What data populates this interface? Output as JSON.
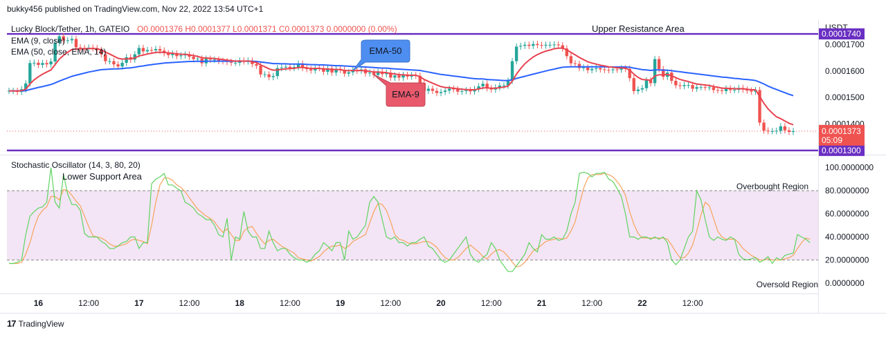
{
  "header": {
    "publisher_line": "bukky456 published on TradingView.com, Nov 22, 2022 13:54 UTC+1"
  },
  "footer": {
    "brand": "TradingView",
    "logo": "tradingview-logo-icon"
  },
  "colors": {
    "up": "#26a69a",
    "down": "#ef5350",
    "ema9": "#e8424f",
    "ema50": "#2962ff",
    "level": "#6a2fc2",
    "stoch_k": "#5fd35f",
    "stoch_d": "#f7a35c",
    "band": "#f3e5f5"
  },
  "chart_data": [
    {
      "type": "candlestick",
      "legend": {
        "symbol": "Lucky Block/Tether, 1h, GATEIO",
        "ohlc": "O0.0001376  H0.0001377  L0.0001371  C0.0001373  0.0000000 (0.00%)",
        "ema9": "EMA (9, close)",
        "ema50": "EMA (50, close, EMA, 14)"
      },
      "y_axis": {
        "unit": "USDT",
        "ticks": [
          "0.0001700",
          "0.0001600",
          "0.0001500",
          "0.0001400"
        ],
        "tick_values": [
          0.00017,
          0.00016,
          0.00015,
          0.00014
        ],
        "ylim": [
          0.0001284,
          0.0001795
        ]
      },
      "x_axis": {
        "labels": [
          "16",
          "12:00",
          "17",
          "12:00",
          "18",
          "12:00",
          "19",
          "12:00",
          "20",
          "12:00",
          "21",
          "12:00",
          "22",
          "12:00"
        ],
        "label_index": [
          7,
          19,
          31,
          43,
          55,
          67,
          79,
          91,
          103,
          115,
          127,
          139,
          151,
          163
        ]
      },
      "candles_close": [
        0.0001525,
        0.0001525,
        0.0001521,
        0.0001531,
        0.0001553,
        0.000163,
        0.0001631,
        0.0001623,
        0.000163,
        0.0001625,
        0.0001636,
        0.0001706,
        0.0001731,
        0.0001715,
        0.0001716,
        0.0001721,
        0.0001689,
        0.0001687,
        0.0001685,
        0.0001688,
        0.0001686,
        0.0001679,
        0.0001663,
        0.0001637,
        0.0001637,
        0.0001625,
        0.0001617,
        0.0001631,
        0.0001652,
        0.0001643,
        0.0001663,
        0.0001687,
        0.0001674,
        0.0001679,
        0.0001678,
        0.0001683,
        0.0001677,
        0.0001667,
        0.000166,
        0.0001666,
        0.0001656,
        0.0001659,
        0.0001662,
        0.0001654,
        0.0001645,
        0.0001647,
        0.0001629,
        0.0001646,
        0.0001643,
        0.0001643,
        0.0001638,
        0.0001637,
        0.0001634,
        0.0001631,
        0.0001631,
        0.0001639,
        0.0001636,
        0.0001639,
        0.0001626,
        0.000162,
        0.0001587,
        0.0001587,
        0.0001577,
        0.0001581,
        0.0001611,
        0.0001613,
        0.0001616,
        0.0001611,
        0.0001615,
        0.0001628,
        0.0001611,
        0.0001607,
        0.0001602,
        0.0001612,
        0.0001611,
        0.0001597,
        0.000161,
        0.0001594,
        0.0001608,
        0.0001604,
        0.000159,
        0.0001595,
        0.0001604,
        0.0001601,
        0.0001606,
        0.0001591,
        0.0001594,
        0.0001585,
        0.0001596,
        0.0001588,
        0.0001594,
        0.0001575,
        0.0001583,
        0.0001575,
        0.0001585,
        0.0001579,
        0.0001584,
        0.0001582,
        0.0001555,
        0.0001525,
        0.0001533,
        0.0001525,
        0.0001517,
        0.0001521,
        0.0001526,
        0.0001533,
        0.0001531,
        0.0001522,
        0.0001524,
        0.0001527,
        0.0001523,
        0.0001532,
        0.0001542,
        0.0001552,
        0.0001535,
        0.000153,
        0.0001538,
        0.0001545,
        0.0001545,
        0.0001563,
        0.0001637,
        0.0001692,
        0.0001695,
        0.0001699,
        0.0001695,
        0.0001702,
        0.0001698,
        0.0001696,
        0.0001699,
        0.0001699,
        0.00017,
        0.0001697,
        0.0001685,
        0.0001656,
        0.0001629,
        0.0001627,
        0.0001611,
        0.0001613,
        0.0001603,
        0.0001608,
        0.0001611,
        0.0001606,
        0.0001604,
        0.0001603,
        0.0001606,
        0.0001605,
        0.000161,
        0.0001608,
        0.0001573,
        0.0001524,
        0.000153,
        0.0001535,
        0.0001565,
        0.0001554,
        0.0001645,
        0.0001607,
        0.0001578,
        0.0001594,
        0.0001563,
        0.0001546,
        0.0001543,
        0.0001547,
        0.0001547,
        0.0001533,
        0.0001539,
        0.0001539,
        0.0001538,
        0.0001538,
        0.0001528,
        0.0001527,
        0.0001524,
        0.0001534,
        0.0001528,
        0.0001529,
        0.0001536,
        0.000153,
        0.0001526,
        0.0001522,
        0.0001528,
        0.0001405,
        0.0001375,
        0.0001373,
        0.0001373,
        0.0001374,
        0.0001391,
        0.0001376,
        0.000137,
        0.0001373
      ],
      "ema9": [
        0.0001525,
        0.0001525,
        0.0001524,
        0.0001526,
        0.0001531,
        0.0001551,
        0.0001567,
        0.0001578,
        0.0001588,
        0.0001596,
        0.0001604,
        0.0001624,
        0.0001645,
        0.0001659,
        0.0001671,
        0.0001681,
        0.0001683,
        0.0001684,
        0.0001684,
        0.0001685,
        0.0001685,
        0.0001684,
        0.000168,
        0.0001671,
        0.0001664,
        0.0001656,
        0.0001648,
        0.0001645,
        0.0001646,
        0.0001646,
        0.0001649,
        0.0001657,
        0.000166,
        0.0001664,
        0.0001667,
        0.000167,
        0.0001671,
        0.000167,
        0.0001668,
        0.0001667,
        0.0001665,
        0.0001663,
        0.0001663,
        0.0001661,
        0.0001658,
        0.0001655,
        0.000165,
        0.0001649,
        0.0001648,
        0.0001647,
        0.0001645,
        0.0001643,
        0.0001641,
        0.0001639,
        0.0001637,
        0.0001638,
        0.0001637,
        0.0001638,
        0.0001635,
        0.0001632,
        0.0001623,
        0.0001616,
        0.0001608,
        0.0001603,
        0.0001604,
        0.0001606,
        0.0001608,
        0.0001609,
        0.000161,
        0.0001613,
        0.0001613,
        0.0001612,
        0.0001609,
        0.000161,
        0.000161,
        0.0001607,
        0.0001608,
        0.0001605,
        0.0001606,
        0.0001605,
        0.0001602,
        0.0001601,
        0.0001602,
        0.0001601,
        0.0001602,
        0.00016,
        0.0001599,
        0.0001596,
        0.0001596,
        0.0001595,
        0.0001594,
        0.000159,
        0.0001589,
        0.0001586,
        0.0001586,
        0.0001584,
        0.0001584,
        0.0001584,
        0.0001578,
        0.0001568,
        0.0001561,
        0.0001554,
        0.0001547,
        0.0001541,
        0.0001538,
        0.0001537,
        0.0001535,
        0.0001533,
        0.0001531,
        0.000153,
        0.0001529,
        0.0001529,
        0.0001532,
        0.0001536,
        0.0001536,
        0.0001535,
        0.0001535,
        0.0001537,
        0.0001539,
        0.0001543,
        0.0001562,
        0.0001588,
        0.0001609,
        0.0001627,
        0.0001641,
        0.0001653,
        0.0001662,
        0.0001669,
        0.0001675,
        0.0001679,
        0.0001684,
        0.0001686,
        0.0001686,
        0.000168,
        0.000167,
        0.0001661,
        0.0001651,
        0.0001643,
        0.0001635,
        0.000163,
        0.0001626,
        0.0001622,
        0.0001619,
        0.0001616,
        0.0001614,
        0.0001612,
        0.0001612,
        0.0001611,
        0.0001604,
        0.0001588,
        0.0001576,
        0.0001568,
        0.0001567,
        0.0001565,
        0.0001581,
        0.0001586,
        0.0001585,
        0.0001587,
        0.0001582,
        0.0001575,
        0.0001568,
        0.0001564,
        0.000156,
        0.0001555,
        0.0001551,
        0.0001549,
        0.0001547,
        0.0001545,
        0.0001541,
        0.0001539,
        0.0001535,
        0.0001535,
        0.0001534,
        0.0001533,
        0.0001533,
        0.0001533,
        0.0001531,
        0.0001529,
        0.0001529,
        0.0001504,
        0.0001478,
        0.0001457,
        0.0001441,
        0.0001427,
        0.000142,
        0.0001411,
        0.0001403,
        0.0001397
      ],
      "ema50": [
        0.0001525,
        0.0001525,
        0.0001525,
        0.0001525,
        0.0001526,
        0.000153,
        0.0001534,
        0.0001538,
        0.0001541,
        0.0001545,
        0.0001549,
        0.0001555,
        0.0001562,
        0.0001568,
        0.0001574,
        0.000158,
        0.0001584,
        0.0001588,
        0.0001592,
        0.0001596,
        0.0001599,
        0.0001602,
        0.0001605,
        0.0001606,
        0.0001607,
        0.0001608,
        0.0001608,
        0.0001609,
        0.0001611,
        0.0001612,
        0.0001614,
        0.0001617,
        0.0001619,
        0.0001622,
        0.0001624,
        0.0001626,
        0.0001628,
        0.000163,
        0.0001631,
        0.0001632,
        0.0001633,
        0.0001634,
        0.0001635,
        0.0001636,
        0.0001636,
        0.0001637,
        0.0001636,
        0.0001637,
        0.0001637,
        0.0001637,
        0.0001637,
        0.0001637,
        0.0001637,
        0.0001637,
        0.0001637,
        0.0001637,
        0.0001637,
        0.0001637,
        0.0001637,
        0.0001636,
        0.0001634,
        0.0001632,
        0.000163,
        0.0001628,
        0.0001628,
        0.0001627,
        0.0001627,
        0.0001626,
        0.0001626,
        0.0001626,
        0.0001626,
        0.0001625,
        0.0001624,
        0.0001624,
        0.0001623,
        0.0001623,
        0.0001622,
        0.0001621,
        0.000162,
        0.000162,
        0.0001619,
        0.0001618,
        0.0001617,
        0.0001617,
        0.0001616,
        0.0001615,
        0.0001614,
        0.0001613,
        0.0001612,
        0.0001611,
        0.0001611,
        0.0001609,
        0.0001608,
        0.0001607,
        0.0001606,
        0.0001605,
        0.0001604,
        0.0001603,
        0.0001602,
        0.0001599,
        0.0001596,
        0.0001593,
        0.000159,
        0.0001587,
        0.0001585,
        0.0001583,
        0.0001581,
        0.0001579,
        0.0001577,
        0.0001575,
        0.0001573,
        0.0001571,
        0.000157,
        0.000157,
        0.0001568,
        0.0001567,
        0.0001566,
        0.0001565,
        0.0001564,
        0.0001564,
        0.0001567,
        0.0001572,
        0.0001576,
        0.000158,
        0.0001584,
        0.0001588,
        0.0001592,
        0.0001596,
        0.00016,
        0.0001604,
        0.0001607,
        0.0001611,
        0.0001614,
        0.0001615,
        0.0001616,
        0.0001616,
        0.0001616,
        0.0001616,
        0.0001616,
        0.0001616,
        0.0001616,
        0.0001616,
        0.0001616,
        0.0001615,
        0.0001615,
        0.0001615,
        0.0001615,
        0.0001615,
        0.0001614,
        0.0001611,
        0.0001608,
        0.0001605,
        0.0001604,
        0.0001602,
        0.0001604,
        0.0001604,
        0.0001603,
        0.0001603,
        0.0001601,
        0.0001599,
        0.0001597,
        0.0001595,
        0.0001593,
        0.0001591,
        0.0001589,
        0.0001587,
        0.0001585,
        0.0001583,
        0.0001581,
        0.0001579,
        0.0001577,
        0.0001576,
        0.0001574,
        0.0001572,
        0.0001571,
        0.0001569,
        0.0001568,
        0.0001566,
        0.0001564,
        0.0001558,
        0.0001551,
        0.0001543,
        0.0001536,
        0.000153,
        0.0001524,
        0.0001518,
        0.0001512,
        0.0001507
      ],
      "levels": [
        {
          "name": "Upper Resistance Area",
          "value": 0.000174,
          "price_label": "0.0001740"
        },
        {
          "name": "Lower Support Area",
          "value": 0.00013,
          "price_label": "0.0001300"
        }
      ],
      "current_price": {
        "value": 0.0001373,
        "label": "0.0001373",
        "countdown": "05:09"
      },
      "annotations": [
        {
          "text": "EMA-50",
          "color": "#4d8ef0",
          "points_to": "ema50"
        },
        {
          "text": "EMA-9",
          "color": "#e8596b",
          "points_to": "ema9"
        }
      ]
    },
    {
      "type": "line",
      "title": "Stochastic Oscillator (14, 3, 80, 20)",
      "y_axis": {
        "ticks": [
          "100.0000000",
          "80.0000000",
          "60.0000000",
          "40.0000000",
          "20.0000000",
          "0.0000000"
        ],
        "tick_values": [
          100,
          80,
          60,
          40,
          20,
          0
        ],
        "ylim": [
          -9,
          110
        ]
      },
      "bands": [
        {
          "name": "Overbought Region",
          "value": 80
        },
        {
          "name": "Oversold Region",
          "value": 20
        }
      ],
      "series": [
        {
          "key": "k",
          "values": [
            17,
            17,
            18,
            20,
            42,
            58,
            62,
            65,
            66,
            70,
            100,
            70,
            65,
            94,
            77,
            68,
            68,
            63,
            43,
            40,
            40,
            40,
            36,
            34,
            30,
            30,
            32,
            35,
            36,
            40,
            40,
            30,
            35,
            35,
            86,
            90,
            92,
            95,
            85,
            85,
            82,
            80,
            70,
            68,
            65,
            60,
            58,
            55,
            55,
            50,
            42,
            40,
            56,
            20,
            40,
            38,
            62,
            45,
            40,
            40,
            30,
            30,
            45,
            35,
            28,
            30,
            30,
            25,
            22,
            20,
            20,
            18,
            20,
            25,
            28,
            35,
            32,
            28,
            35,
            35,
            20,
            45,
            38,
            40,
            45,
            50,
            70,
            75,
            70,
            55,
            40,
            38,
            40,
            35,
            35,
            32,
            35,
            35,
            38,
            40,
            32,
            30,
            25,
            20,
            18,
            20,
            25,
            30,
            35,
            40,
            25,
            20,
            18,
            22,
            25,
            35,
            30,
            20,
            15,
            10,
            10,
            15,
            20,
            25,
            35,
            30,
            27,
            42,
            38,
            38,
            40,
            37,
            38,
            45,
            60,
            70,
            95,
            96,
            95,
            92,
            95,
            95,
            96,
            90,
            88,
            82,
            75,
            60,
            40,
            40,
            38,
            40,
            40,
            38,
            40,
            38,
            40,
            35,
            20,
            16,
            20,
            30,
            40,
            45,
            80,
            72,
            55,
            40,
            37,
            40,
            38,
            37,
            40,
            38,
            25,
            21,
            20,
            21,
            22,
            18,
            20,
            23,
            17,
            22,
            20,
            24,
            25,
            26,
            42,
            40,
            38,
            35
          ]
        },
        {
          "key": "d",
          "values": [
            17,
            17,
            17,
            18,
            25,
            35,
            48,
            58,
            63,
            66,
            75,
            75,
            72,
            81,
            80,
            76,
            71,
            67,
            58,
            49,
            41,
            40,
            39,
            37,
            34,
            32,
            32,
            33,
            34,
            37,
            38,
            37,
            36,
            34,
            50,
            70,
            85,
            91,
            91,
            89,
            85,
            83,
            79,
            74,
            69,
            64,
            61,
            58,
            56,
            53,
            48,
            44,
            47,
            42,
            37,
            37,
            45,
            48,
            49,
            43,
            38,
            34,
            37,
            38,
            35,
            32,
            30,
            28,
            26,
            22,
            21,
            20,
            19,
            21,
            23,
            27,
            30,
            32,
            32,
            33,
            30,
            32,
            36,
            38,
            40,
            42,
            52,
            62,
            69,
            68,
            63,
            53,
            42,
            38,
            37,
            35,
            34,
            34,
            35,
            36,
            36,
            34,
            31,
            26,
            22,
            20,
            20,
            22,
            26,
            30,
            33,
            30,
            27,
            23,
            21,
            25,
            28,
            29,
            27,
            23,
            18,
            14,
            15,
            18,
            23,
            28,
            30,
            33,
            36,
            37,
            38,
            39,
            38,
            39,
            45,
            53,
            68,
            82,
            91,
            94,
            94,
            94,
            95,
            94,
            92,
            88,
            83,
            76,
            62,
            51,
            43,
            39,
            39,
            39,
            39,
            39,
            39,
            38,
            33,
            27,
            22,
            22,
            26,
            33,
            45,
            59,
            70,
            67,
            56,
            45,
            40,
            38,
            38,
            38,
            35,
            30,
            27,
            24,
            22,
            20,
            20,
            21,
            20,
            20,
            20,
            21,
            22,
            24,
            30,
            35,
            39,
            38
          ]
        }
      ]
    }
  ]
}
